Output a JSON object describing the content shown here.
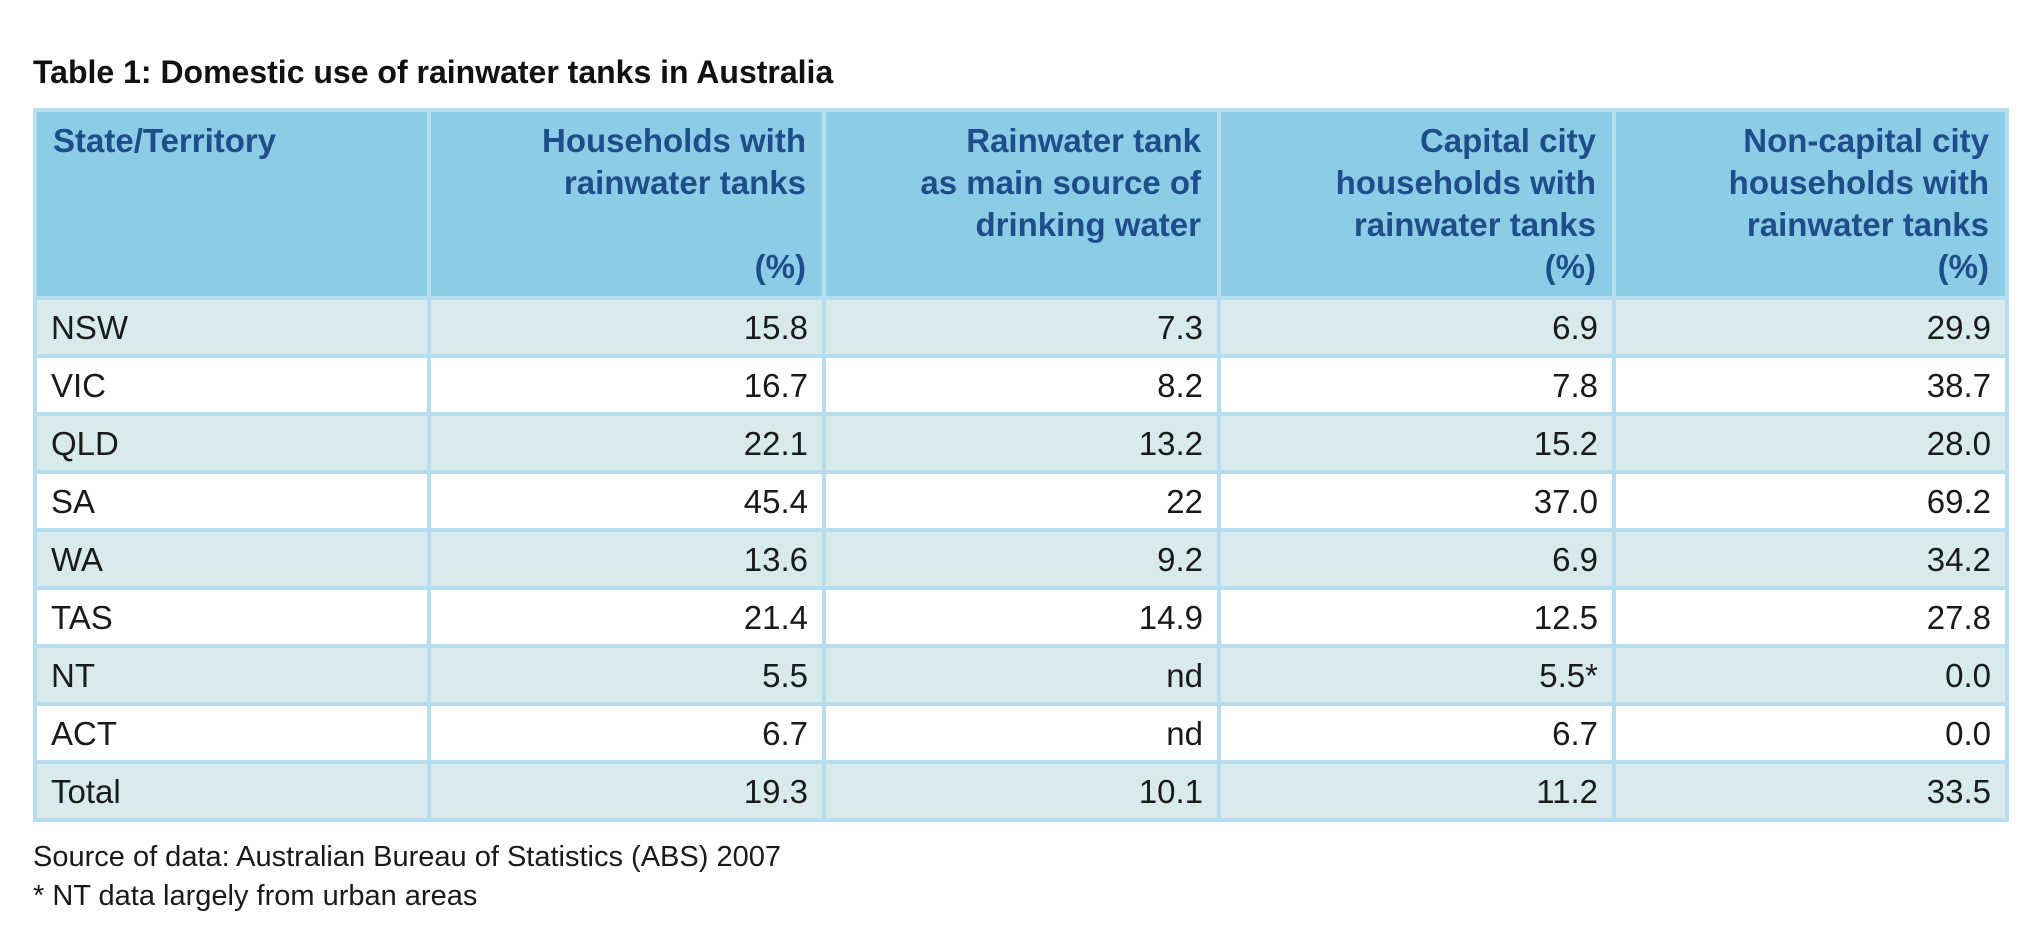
{
  "title": "Table 1: Domestic use of rainwater tanks in Australia",
  "header": {
    "state": "State/Territory",
    "col1": {
      "lines": [
        "Households with",
        "rainwater tanks"
      ],
      "unit": "(%)"
    },
    "col2": {
      "lines": [
        "Rainwater tank",
        "as main source of",
        "drinking water"
      ],
      "unit": ""
    },
    "col3": {
      "lines": [
        "Capital city",
        "households with",
        "rainwater tanks"
      ],
      "unit": "(%)"
    },
    "col4": {
      "lines": [
        "Non-capital city",
        "households with",
        "rainwater tanks"
      ],
      "unit": "(%)"
    }
  },
  "rows": [
    {
      "state": "NSW",
      "households": "15.8",
      "main_source": "7.3",
      "capital": "6.9",
      "non_capital": "29.9"
    },
    {
      "state": "VIC",
      "households": "16.7",
      "main_source": "8.2",
      "capital": "7.8",
      "non_capital": "38.7"
    },
    {
      "state": "QLD",
      "households": "22.1",
      "main_source": "13.2",
      "capital": "15.2",
      "non_capital": "28.0"
    },
    {
      "state": "SA",
      "households": "45.4",
      "main_source": "22",
      "capital": "37.0",
      "non_capital": "69.2"
    },
    {
      "state": "WA",
      "households": "13.6",
      "main_source": "9.2",
      "capital": "6.9",
      "non_capital": "34.2"
    },
    {
      "state": "TAS",
      "households": "21.4",
      "main_source": "14.9",
      "capital": "12.5",
      "non_capital": "27.8"
    },
    {
      "state": "NT",
      "households": "5.5",
      "main_source": "nd",
      "capital": "5.5*",
      "non_capital": "0.0"
    },
    {
      "state": "ACT",
      "households": "6.7",
      "main_source": "nd",
      "capital": "6.7",
      "non_capital": "0.0"
    },
    {
      "state": "Total",
      "households": "19.3",
      "main_source": "10.1",
      "capital": "11.2",
      "non_capital": "33.5"
    }
  ],
  "notes": {
    "source": "Source of data: Australian Bureau of Statistics (ABS) 2007",
    "footnote": "* NT data largely from urban areas"
  },
  "colors": {
    "header_bg": "#8bcce6",
    "header_text": "#1f4d8a",
    "shaded_row": "#d8eaec",
    "grid_line": "#b7def0"
  }
}
